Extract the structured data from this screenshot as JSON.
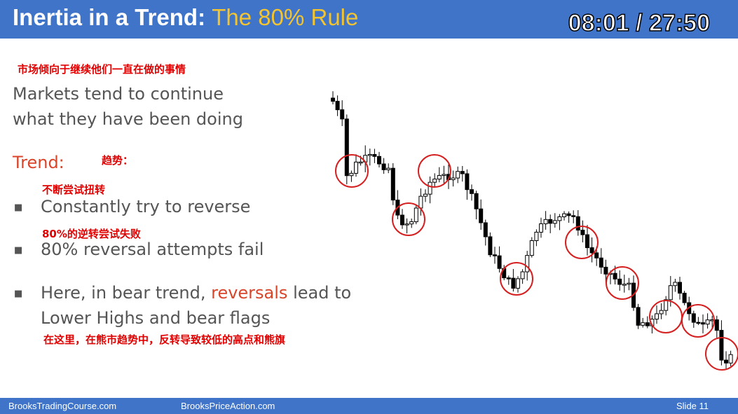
{
  "header": {
    "title_main": "Inertia in a Trend:",
    "title_accent": "The 80% Rule",
    "timer": "08:01 / 27:50"
  },
  "body": {
    "note_top": "市场倾向于继续他们一直在做的事情",
    "lead": [
      "Markets tend to continue",
      "what they have been doing"
    ],
    "trend_label": "Trend:",
    "trend_note": "趋势：",
    "bullets": [
      {
        "note": "不断尝试扭转",
        "text": "Constantly try to reverse"
      },
      {
        "note": "80%的逆转尝试失败",
        "text": "80% reversal attempts fail"
      },
      {
        "text_start": "Here, in bear trend, ",
        "text_highlight": "reversals",
        "text_end": " lead to",
        "text_line2": "Lower Highs and bear flags",
        "note": "在这里，在熊市趋势中，反转导致较低的高点和熊旗"
      }
    ]
  },
  "footer": {
    "site1": "BrooksTradingCourse.com",
    "site2": "BrooksPriceAction.com",
    "slide": "Slide 11"
  }
}
